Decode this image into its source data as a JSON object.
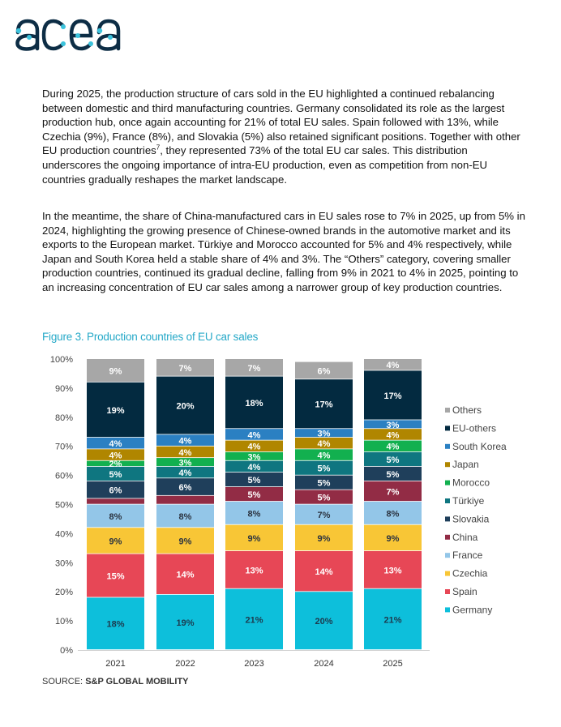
{
  "logo": {
    "text": "acea",
    "colors": {
      "letters": "#0d2d45",
      "dots": "#3cc3dc"
    }
  },
  "body": {
    "p1_before": "During 2025, the production structure of cars sold in the EU highlighted a continued rebalancing between domestic and third manufacturing countries. Germany consolidated its role as the largest production hub, once again accounting for 21% of total EU sales. Spain followed with 13%, while Czechia (9%), France (8%), and Slovakia (5%) also retained significant positions. Together with other EU production countries",
    "p1_footnote": "7",
    "p1_after": ", they represented 73% of the total EU car sales. This distribution underscores the ongoing importance of intra-EU production, even as competition from non-EU countries gradually reshapes the market landscape.",
    "p2": "In the meantime, the share of China-manufactured cars in EU sales rose to 7% in 2025, up from 5% in 2024, highlighting the growing presence of Chinese-owned brands in the automotive market and its exports to the European market. Türkiye and Morocco accounted for 5% and 4% respectively, while Japan and South Korea held a stable share of 4% and 3%. The “Others” category, covering smaller production countries, continued its gradual decline, falling from 9% in 2021 to 4% in 2025, pointing to an increasing concentration of EU car sales among a narrower group of key production countries."
  },
  "figure": {
    "title": "Figure 3. Production countries of EU car sales",
    "source_label": "SOURCE: ",
    "source_value": "S&P GLOBAL MOBILITY"
  },
  "chart_data": {
    "type": "bar",
    "stacked": true,
    "categories": [
      "2021",
      "2022",
      "2023",
      "2024",
      "2025"
    ],
    "ylim": [
      0,
      100
    ],
    "y_ticks": [
      "0%",
      "10%",
      "20%",
      "30%",
      "40%",
      "50%",
      "60%",
      "70%",
      "80%",
      "90%",
      "100%"
    ],
    "grid": false,
    "legend_position": "right",
    "series": [
      {
        "name": "Germany",
        "color": "#0dbfdb",
        "label_color": "#1d3a4e",
        "values": [
          18,
          19,
          21,
          20,
          21
        ],
        "labeled": [
          true,
          true,
          true,
          true,
          true
        ]
      },
      {
        "name": "Spain",
        "color": "#e74756",
        "label_color": "#ffffff",
        "values": [
          15,
          14,
          13,
          14,
          13
        ],
        "labeled": [
          true,
          true,
          true,
          true,
          true
        ]
      },
      {
        "name": "Czechia",
        "color": "#f8c636",
        "label_color": "#2b3340",
        "values": [
          9,
          9,
          9,
          9,
          9
        ],
        "labeled": [
          true,
          true,
          true,
          true,
          true
        ]
      },
      {
        "name": "France",
        "color": "#93c6e8",
        "label_color": "#2b3340",
        "values": [
          8,
          8,
          8,
          7,
          8
        ],
        "labeled": [
          true,
          true,
          true,
          true,
          true
        ]
      },
      {
        "name": "China",
        "color": "#922c45",
        "label_color": "#ffffff",
        "values": [
          2,
          3,
          5,
          5,
          7
        ],
        "labeled": [
          false,
          false,
          true,
          true,
          true
        ]
      },
      {
        "name": "Slovakia",
        "color": "#1f3f5b",
        "label_color": "#ffffff",
        "values": [
          6,
          6,
          5,
          5,
          5
        ],
        "labeled": [
          true,
          true,
          true,
          true,
          true
        ]
      },
      {
        "name": "Türkiye",
        "color": "#0f7680",
        "label_color": "#ffffff",
        "values": [
          5,
          4,
          4,
          5,
          5
        ],
        "labeled": [
          true,
          true,
          true,
          true,
          true
        ]
      },
      {
        "name": "Morocco",
        "color": "#12b04f",
        "label_color": "#ffffff",
        "values": [
          2,
          3,
          3,
          4,
          4
        ],
        "labeled": [
          true,
          true,
          true,
          true,
          true
        ]
      },
      {
        "name": "Japan",
        "color": "#b08600",
        "label_color": "#ffffff",
        "values": [
          4,
          4,
          4,
          4,
          4
        ],
        "labeled": [
          true,
          true,
          true,
          true,
          true
        ]
      },
      {
        "name": "South Korea",
        "color": "#2b80c2",
        "label_color": "#ffffff",
        "values": [
          4,
          4,
          4,
          3,
          3
        ],
        "labeled": [
          true,
          true,
          true,
          true,
          true
        ]
      },
      {
        "name": "EU-others",
        "color": "#032a40",
        "label_color": "#ffffff",
        "values": [
          19,
          20,
          18,
          17,
          17
        ],
        "labeled": [
          true,
          true,
          true,
          true,
          true
        ]
      },
      {
        "name": "Others",
        "color": "#a7a7a7",
        "label_color": "#ffffff",
        "values": [
          9,
          7,
          7,
          6,
          4
        ],
        "labeled": [
          true,
          true,
          true,
          true,
          true
        ]
      }
    ]
  }
}
